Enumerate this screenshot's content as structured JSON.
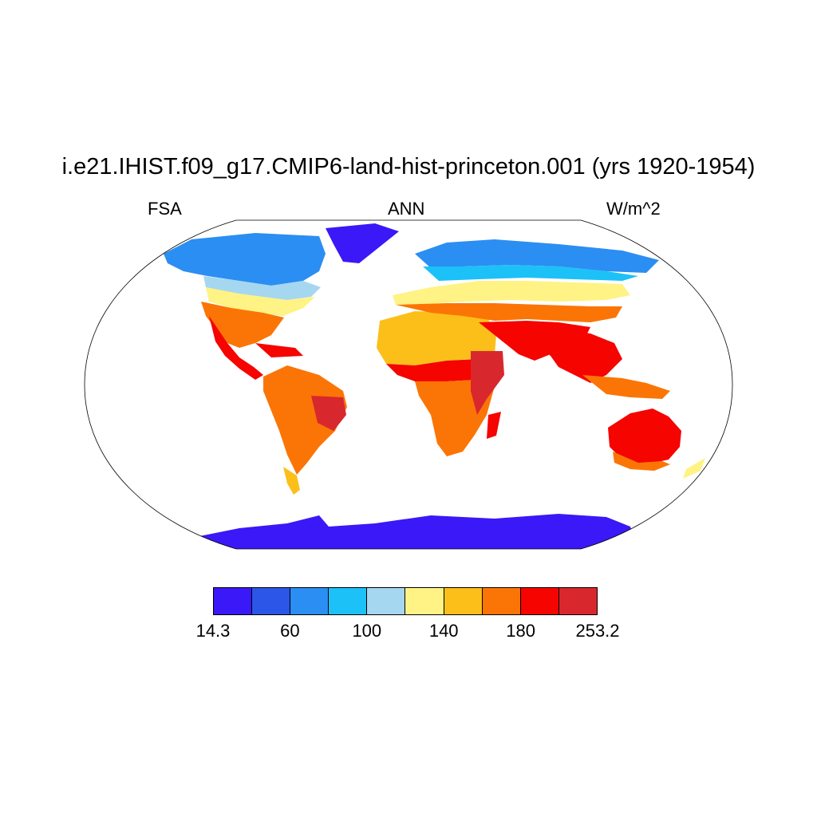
{
  "title": "i.e21.IHIST.f09_g17.CMIP6-land-hist-princeton.001 (yrs 1920-1954)",
  "subtitle_left": "FSA",
  "subtitle_center": "ANN",
  "subtitle_right": "W/m^2",
  "projection": "Robinson",
  "colorbar": {
    "colors": [
      "#3a18f7",
      "#2c56e8",
      "#2b8ef2",
      "#1cc1f8",
      "#a6d7f0",
      "#fef384",
      "#fcbf1a",
      "#fb7506",
      "#f50400",
      "#d8282d"
    ],
    "tick_labels": [
      "14.3",
      "60",
      "100",
      "140",
      "180",
      "253.2"
    ]
  }
}
